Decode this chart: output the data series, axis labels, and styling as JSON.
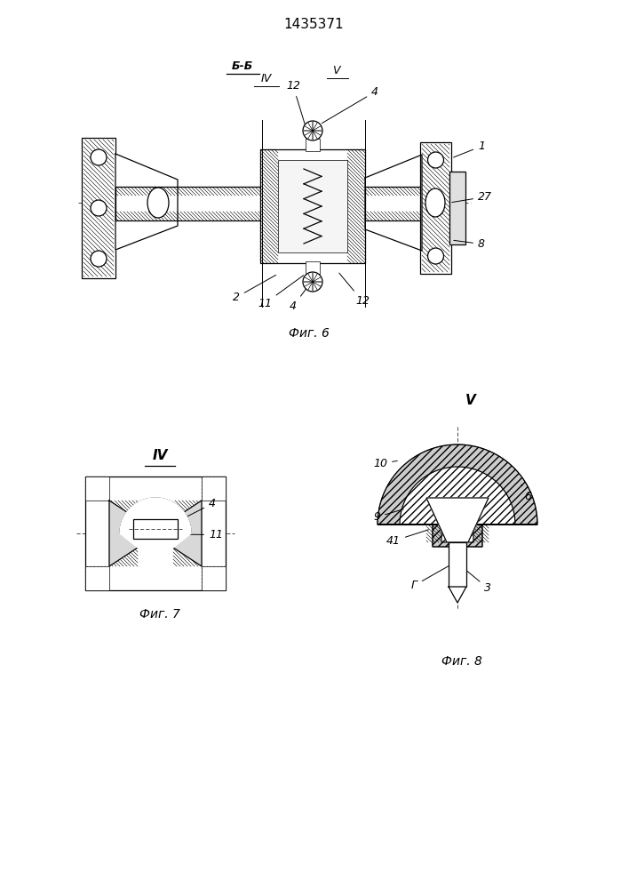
{
  "title": "1435371",
  "bg_color": "#ffffff",
  "line_color": "#000000",
  "fig6_label": "Фиг. 6",
  "fig7_label": "Фиг. 7",
  "fig8_label": "Фиг. 8",
  "label_bb": "Б-Б",
  "label_IV": "IV",
  "label_V": "V"
}
